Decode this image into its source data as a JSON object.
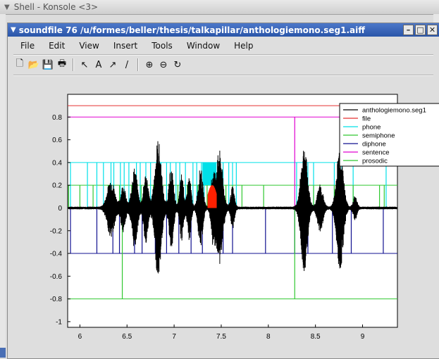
{
  "outer_window": {
    "title": "Shell - Konsole <3>"
  },
  "window": {
    "title": "soundfile 76 /u/formes/beller/thesis/talkapillar/anthologiemono.seg1.aiff"
  },
  "menu": [
    "File",
    "Edit",
    "View",
    "Insert",
    "Tools",
    "Window",
    "Help"
  ],
  "toolbar": [
    {
      "icon": "new-file-icon",
      "glyph": "🗋"
    },
    {
      "icon": "open-folder-icon",
      "glyph": "📂"
    },
    {
      "icon": "save-icon",
      "glyph": "💾"
    },
    {
      "icon": "print-icon",
      "glyph": "🖶"
    },
    {
      "icon": "select-arrow-icon",
      "glyph": "↖"
    },
    {
      "icon": "insert-text-icon",
      "glyph": "A"
    },
    {
      "icon": "insert-arrow-icon",
      "glyph": "↗"
    },
    {
      "icon": "insert-line-icon",
      "glyph": "/"
    },
    {
      "icon": "zoom-in-icon",
      "glyph": "⊕"
    },
    {
      "icon": "zoom-out-icon",
      "glyph": "⊖"
    },
    {
      "icon": "rotate-icon",
      "glyph": "↻"
    }
  ],
  "chart_data": {
    "type": "line",
    "xlim": [
      5.87,
      9.37
    ],
    "ylim": [
      -1.05,
      1.0
    ],
    "xticks": [
      6,
      6.5,
      7,
      7.5,
      8,
      8.5,
      9
    ],
    "xtick_labels": [
      "6",
      "6.5",
      "7",
      "7.5",
      "8",
      "8.5",
      "9"
    ],
    "yticks": [
      0.8,
      0.6,
      0.4,
      0.2,
      0,
      -0.2,
      -0.4,
      -0.6,
      -0.8,
      -1
    ],
    "ytick_labels": [
      "0.8",
      "0.6",
      "0.4",
      "0.2",
      "0",
      "-0.2",
      "-0.4",
      "-0.6",
      "-0.8",
      "-1"
    ],
    "legend_position": "top-right",
    "colors": {
      "waveform": "#000000",
      "file": "#e53030",
      "phone": "#00e0e8",
      "semiphone": "#30c830",
      "diphone": "#101090",
      "sentence": "#e000d0",
      "prosodic": "#30c830",
      "highlight": "#ff2000"
    },
    "series": [
      {
        "name": "anthologiemono.seg1",
        "color": "#000000"
      },
      {
        "name": "file",
        "color": "#e53030",
        "level": 0.9
      },
      {
        "name": "phone",
        "color": "#00e0e8",
        "level": 0.4
      },
      {
        "name": "semiphone",
        "color": "#30c830",
        "level": 0.2
      },
      {
        "name": "diphone",
        "color": "#101090",
        "level": -0.4
      },
      {
        "name": "sentence",
        "color": "#e000d0",
        "level": 0.8
      },
      {
        "name": "prosodic",
        "color": "#30c830",
        "level": -0.8
      }
    ],
    "waveform_bursts": [
      {
        "center": 6.33,
        "width": 0.08,
        "amp": 0.25
      },
      {
        "center": 6.46,
        "width": 0.05,
        "amp": 0.2
      },
      {
        "center": 6.58,
        "width": 0.06,
        "amp": 0.35
      },
      {
        "center": 6.7,
        "width": 0.05,
        "amp": 0.3
      },
      {
        "center": 6.83,
        "width": 0.07,
        "amp": 0.6
      },
      {
        "center": 6.97,
        "width": 0.05,
        "amp": 0.35
      },
      {
        "center": 7.08,
        "width": 0.04,
        "amp": 0.3
      },
      {
        "center": 7.16,
        "width": 0.04,
        "amp": 0.28
      },
      {
        "center": 7.28,
        "width": 0.05,
        "amp": 0.35
      },
      {
        "center": 7.41,
        "width": 0.04,
        "amp": 0.28
      },
      {
        "center": 7.48,
        "width": 0.07,
        "amp": 0.5
      },
      {
        "center": 7.62,
        "width": 0.04,
        "amp": 0.18
      },
      {
        "center": 8.38,
        "width": 0.07,
        "amp": 0.55
      },
      {
        "center": 8.55,
        "width": 0.06,
        "amp": 0.2
      },
      {
        "center": 8.76,
        "width": 0.07,
        "amp": 0.55
      },
      {
        "center": 8.92,
        "width": 0.04,
        "amp": 0.1
      }
    ],
    "phone_marks": [
      5.9,
      6.08,
      6.18,
      6.25,
      6.33,
      6.36,
      6.43,
      6.47,
      6.52,
      6.6,
      6.64,
      6.7,
      6.75,
      6.82,
      6.86,
      6.92,
      6.96,
      7.02,
      7.06,
      7.12,
      7.2,
      7.24,
      7.29,
      7.32,
      7.52,
      7.58,
      7.62,
      7.66,
      8.3,
      8.42,
      8.48,
      8.7,
      8.78,
      8.9,
      9.25
    ],
    "phone_block": [
      7.3,
      7.45
    ],
    "semiphone_marks": [
      5.88,
      6.0,
      6.14,
      6.3,
      6.42,
      6.55,
      6.65,
      6.78,
      6.86,
      6.95,
      7.04,
      7.14,
      7.25,
      7.35,
      7.55,
      7.62,
      7.72,
      7.95,
      8.35,
      8.48,
      8.7,
      8.9,
      9.18,
      9.23
    ],
    "diphone_marks": [
      5.9,
      6.18,
      6.35,
      6.42,
      6.58,
      6.66,
      6.8,
      6.92,
      7.05,
      7.18,
      7.3,
      7.52,
      7.62,
      7.97,
      8.28,
      8.42,
      8.68,
      8.76,
      8.88,
      9.22
    ],
    "sentence_marks": [
      8.28
    ],
    "prosodic_marks": [
      6.45,
      8.28
    ],
    "highlight_range": [
      7.36,
      7.45
    ]
  }
}
